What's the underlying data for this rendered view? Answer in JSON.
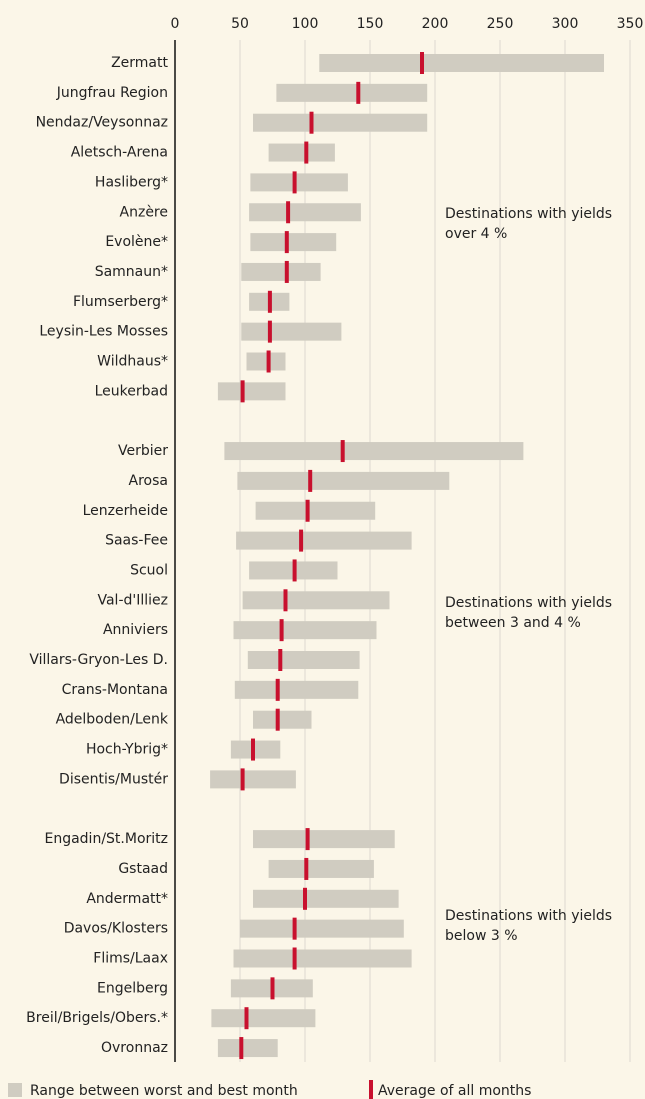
{
  "chart_data": {
    "type": "range",
    "categories": [
      "Zermatt",
      "Jungfrau Region",
      "Nendaz/Veysonnaz",
      "Aletsch-Arena",
      "Hasliberg*",
      "Anzère",
      "Evolène*",
      "Samnaun*",
      "Flumserberg*",
      "Leysin-Les Mosses",
      "Wildhaus*",
      "Leukerbad",
      null,
      "Verbier",
      "Arosa",
      "Lenzerheide",
      "Saas-Fee",
      "Scuol",
      "Val-d'Illiez",
      "Anniviers",
      "Villars-Gryon-Les D.",
      "Crans-Montana",
      "Adelboden/Lenk",
      "Hoch-Ybrig*",
      "Disentis/Mustér",
      null,
      "Engadin/St.Moritz",
      "Gstaad",
      "Andermatt*",
      "Davos/Klosters",
      "Flims/Laax",
      "Engelberg",
      "Breil/Brigels/Obers.*",
      "Ovronnaz"
    ],
    "series": [
      {
        "name": "Range between worst and best month",
        "color": "#d0ccc1",
        "low": [
          111,
          78,
          60,
          72,
          58,
          57,
          58,
          51,
          57,
          51,
          55,
          33,
          null,
          38,
          48,
          62,
          47,
          57,
          52,
          45,
          56,
          46,
          60,
          43,
          27,
          null,
          60,
          72,
          60,
          50,
          45,
          43,
          28,
          33
        ],
        "high": [
          330,
          194,
          194,
          123,
          133,
          143,
          124,
          112,
          88,
          128,
          85,
          85,
          null,
          268,
          211,
          154,
          182,
          125,
          165,
          155,
          142,
          141,
          105,
          81,
          93,
          null,
          169,
          153,
          172,
          176,
          182,
          106,
          108,
          79
        ]
      },
      {
        "name": "Average of all months",
        "color": "#c8102e",
        "values": [
          190,
          141,
          105,
          101,
          92,
          87,
          86,
          86,
          73,
          73,
          72,
          52,
          null,
          129,
          104,
          102,
          97,
          92,
          85,
          82,
          81,
          79,
          79,
          60,
          52,
          null,
          102,
          101,
          100,
          92,
          92,
          75,
          55,
          51
        ]
      }
    ],
    "annotations": [
      [
        "Destinations with yields",
        "over 4 %"
      ],
      [
        "Destinations with yields",
        "between 3 and 4 %"
      ],
      [
        "Destinations with yields",
        "below 3 %"
      ]
    ],
    "xlim": [
      0,
      350
    ],
    "xticks": [
      0,
      50,
      100,
      150,
      200,
      250,
      300,
      350
    ],
    "grid": true
  }
}
